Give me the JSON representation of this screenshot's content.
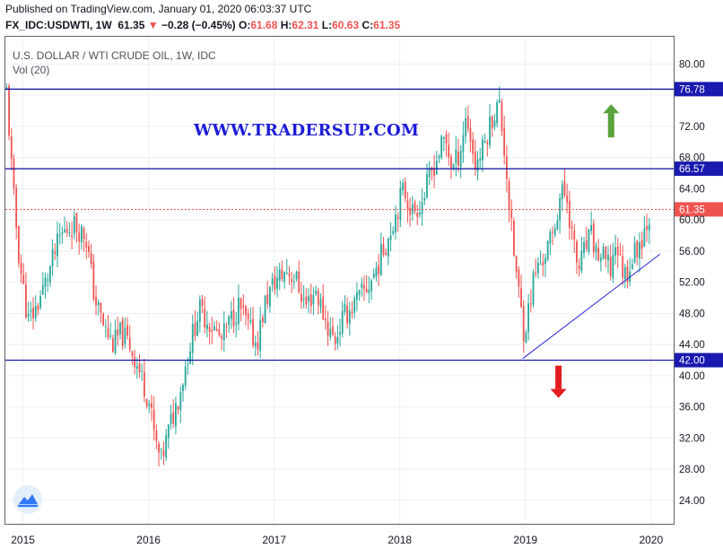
{
  "header": {
    "published": "Published on TradingView.com, January 01, 2020 06:03:37 UTC",
    "symbol": "FX_IDC:USDWTI, 1W",
    "last": "61.35",
    "change_arrow": "▼",
    "change": "−0.28 (−0.45%)",
    "o_label": "O:",
    "o_value": "61.68",
    "h_label": "H:",
    "h_value": "62.31",
    "l_label": "L:",
    "l_value": "60.63",
    "c_label": "C:",
    "c_value": "61.35"
  },
  "chart_title": "U.S. DOLLAR / WTI CRUDE OIL, 1W, IDC",
  "volume_label": "Vol (20)",
  "watermark": "WWW.TRADERSUP.COM",
  "colors": {
    "up": "#26a69a",
    "down": "#ef5350",
    "level_line": "#0a0aa0",
    "trend_line": "#2323d4",
    "price_line": "#ef5350",
    "up_arrow": "#5aa23c",
    "down_arrow": "#e41e1e"
  },
  "icons": {
    "up_arrow": "arrow-up-icon",
    "down_arrow": "arrow-down-icon",
    "logo": "tradingview-logo-icon"
  },
  "chart_data": {
    "type": "candlestick",
    "title": "U.S. DOLLAR / WTI CRUDE OIL, 1W, IDC",
    "interval": "1W",
    "y_ticks": [
      "24.00",
      "28.00",
      "32.00",
      "36.00",
      "40.00",
      "44.00",
      "48.00",
      "52.00",
      "56.00",
      "60.00",
      "64.00",
      "68.00",
      "72.00",
      "76.00",
      "80.00"
    ],
    "ylim": [
      21,
      83.5
    ],
    "x_ticks": [
      "2015",
      "2016",
      "2017",
      "2018",
      "2019",
      "2020"
    ],
    "x_tick_years": [
      2015,
      2016,
      2017,
      2018,
      2019,
      2020
    ],
    "xlim": [
      2014.86,
      2020.18
    ],
    "horizontal_levels": [
      {
        "label": "76.78",
        "value": 76.78
      },
      {
        "label": "66.57",
        "value": 66.57
      },
      {
        "label": "42.00",
        "value": 42.0
      }
    ],
    "last_price": {
      "label": "61.35",
      "value": 61.35
    },
    "trendline": {
      "start": {
        "date": "2018-12-24",
        "value": 42.2
      },
      "end": {
        "date": "2020-01-27",
        "value": 55.6
      }
    },
    "annotations": [
      {
        "name": "bullish arrow",
        "direction": "up",
        "date": "2019-09-07",
        "value": 73
      },
      {
        "name": "bearish arrow",
        "direction": "down",
        "date": "2019-04-07",
        "value": 39
      }
    ],
    "anchors": [
      [
        2014.87,
        76.5
      ],
      [
        2014.92,
        64.0
      ],
      [
        2014.97,
        55.0
      ],
      [
        2015.04,
        47.0
      ],
      [
        2015.1,
        48.5
      ],
      [
        2015.18,
        52.0
      ],
      [
        2015.3,
        58.0
      ],
      [
        2015.4,
        59.5
      ],
      [
        2015.5,
        58.0
      ],
      [
        2015.57,
        50.0
      ],
      [
        2015.65,
        46.0
      ],
      [
        2015.72,
        44.0
      ],
      [
        2015.78,
        45.5
      ],
      [
        2015.85,
        44.0
      ],
      [
        2015.93,
        40.5
      ],
      [
        2016.0,
        37.0
      ],
      [
        2016.06,
        31.0
      ],
      [
        2016.1,
        29.0
      ],
      [
        2016.16,
        33.0
      ],
      [
        2016.25,
        38.0
      ],
      [
        2016.33,
        44.0
      ],
      [
        2016.4,
        48.5
      ],
      [
        2016.5,
        46.5
      ],
      [
        2016.58,
        44.5
      ],
      [
        2016.65,
        47.0
      ],
      [
        2016.72,
        49.0
      ],
      [
        2016.8,
        46.0
      ],
      [
        2016.86,
        44.0
      ],
      [
        2016.93,
        49.5
      ],
      [
        2017.0,
        52.0
      ],
      [
        2017.1,
        53.5
      ],
      [
        2017.17,
        52.5
      ],
      [
        2017.25,
        49.0
      ],
      [
        2017.33,
        51.0
      ],
      [
        2017.42,
        46.5
      ],
      [
        2017.48,
        44.5
      ],
      [
        2017.55,
        47.5
      ],
      [
        2017.63,
        49.0
      ],
      [
        2017.7,
        50.5
      ],
      [
        2017.75,
        51.5
      ],
      [
        2017.82,
        54.0
      ],
      [
        2017.9,
        57.5
      ],
      [
        2017.96,
        60.5
      ],
      [
        2018.03,
        64.0
      ],
      [
        2018.1,
        61.0
      ],
      [
        2018.18,
        62.5
      ],
      [
        2018.27,
        67.0
      ],
      [
        2018.36,
        70.5
      ],
      [
        2018.42,
        66.5
      ],
      [
        2018.48,
        69.0
      ],
      [
        2018.53,
        73.5
      ],
      [
        2018.6,
        67.0
      ],
      [
        2018.66,
        69.0
      ],
      [
        2018.73,
        73.0
      ],
      [
        2018.79,
        75.0
      ],
      [
        2018.84,
        68.0
      ],
      [
        2018.88,
        60.0
      ],
      [
        2018.92,
        54.0
      ],
      [
        2018.96,
        49.0
      ],
      [
        2018.99,
        45.5
      ],
      [
        2019.02,
        48.0
      ],
      [
        2019.07,
        53.0
      ],
      [
        2019.14,
        55.0
      ],
      [
        2019.22,
        58.0
      ],
      [
        2019.28,
        63.5
      ],
      [
        2019.33,
        63.0
      ],
      [
        2019.38,
        57.0
      ],
      [
        2019.42,
        53.5
      ],
      [
        2019.47,
        56.0
      ],
      [
        2019.52,
        58.0
      ],
      [
        2019.57,
        55.5
      ],
      [
        2019.62,
        55.0
      ],
      [
        2019.68,
        53.5
      ],
      [
        2019.72,
        57.5
      ],
      [
        2019.76,
        54.0
      ],
      [
        2019.8,
        53.0
      ],
      [
        2019.86,
        55.5
      ],
      [
        2019.92,
        57.5
      ],
      [
        2019.97,
        60.0
      ],
      [
        2020.0,
        61.35
      ]
    ]
  }
}
